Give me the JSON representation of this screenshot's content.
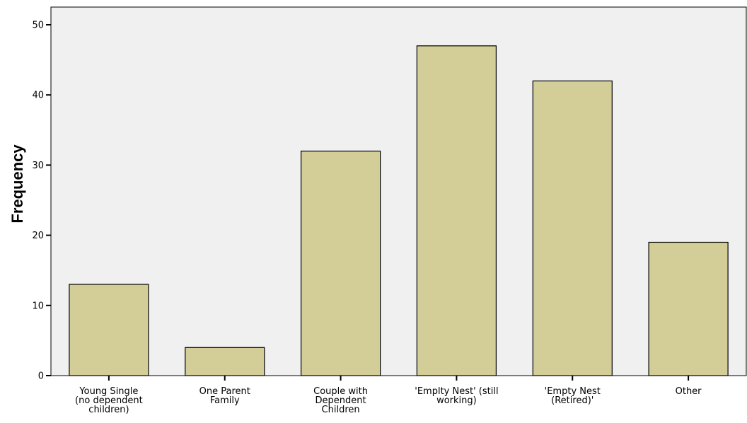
{
  "chart_data": {
    "type": "bar",
    "title": "",
    "xlabel": "",
    "ylabel": "Frequency",
    "ylim": [
      0,
      52
    ],
    "yticks": [
      0,
      10,
      20,
      30,
      40,
      50
    ],
    "grid": false,
    "categories": [
      [
        "Young Single",
        "(no dependent",
        "children)"
      ],
      [
        "One Parent",
        "Family"
      ],
      [
        "Couple with",
        "Dependent",
        "Children"
      ],
      [
        "'Emplty Nest' (still",
        "working)"
      ],
      [
        "'Empty Nest",
        "(Retired)'"
      ],
      [
        "Other"
      ]
    ],
    "values": [
      13,
      4,
      32,
      47,
      42,
      19
    ],
    "colors": {
      "bar_fill": "#d3ce97",
      "bar_stroke": "#000000",
      "plot_background": "#f0f0f0",
      "axis": "#000000"
    }
  }
}
